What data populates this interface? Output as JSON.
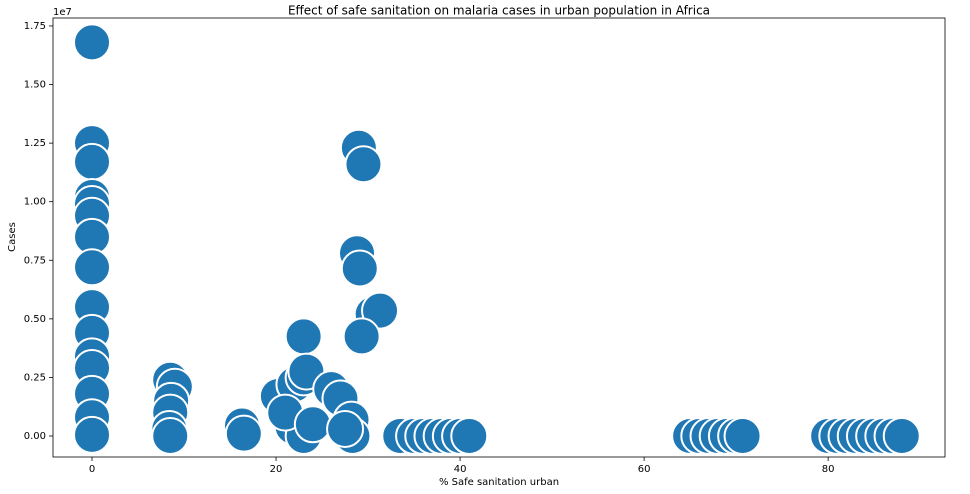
{
  "chart_data": {
    "type": "scatter",
    "title": "Effect of safe sanitation on malaria cases in urban population in Africa",
    "x_label": "% Safe sanitation urban",
    "y_label": "Cases",
    "y_offset_label": "1e7",
    "color": "#1f77b4",
    "edge_color": "#ffffff",
    "x": [
      0,
      0,
      0,
      0,
      0,
      0,
      0,
      0,
      0,
      0,
      0,
      0,
      0,
      0,
      0,
      8.5,
      9,
      8.6,
      8.5,
      8.4,
      8.5,
      16.3,
      16.5,
      20.2,
      22,
      23,
      23,
      23.3,
      21.8,
      23,
      21,
      24,
      26,
      27,
      28.2,
      28.3,
      27.5,
      29,
      29.5,
      28.8,
      29.1,
      30.5,
      31.3,
      29.3,
      33.5,
      35,
      36,
      37,
      38,
      39,
      40,
      41,
      65,
      66,
      67,
      68,
      69,
      70,
      70.7,
      80,
      81,
      82,
      83,
      84,
      85,
      86,
      87,
      88
    ],
    "values": [
      16800000,
      12500000,
      11700000,
      10200000,
      9900000,
      9400000,
      8500000,
      7200000,
      5500000,
      4400000,
      3400000,
      2900000,
      1800000,
      800000,
      50000,
      2400000,
      2100000,
      1500000,
      1000000,
      300000,
      0,
      450000,
      100000,
      1700000,
      2200000,
      2500000,
      4250000,
      2750000,
      400000,
      0,
      1000000,
      500000,
      2000000,
      1600000,
      700000,
      0,
      300000,
      12300000,
      11600000,
      7800000,
      7150000,
      5200000,
      5350000,
      4250000,
      0,
      0,
      0,
      0,
      0,
      0,
      0,
      0,
      0,
      0,
      0,
      0,
      0,
      0,
      0,
      0,
      0,
      0,
      0,
      0,
      0,
      0,
      0,
      0
    ],
    "xlim": [
      -4.24,
      92.7
    ],
    "ylim": [
      -896000,
      17840000
    ],
    "xticks": [
      0,
      20,
      40,
      60,
      80
    ],
    "yticks": [
      {
        "value": 0,
        "label": "0.00"
      },
      {
        "value": 2500000,
        "label": "0.25"
      },
      {
        "value": 5000000,
        "label": "0.50"
      },
      {
        "value": 7500000,
        "label": "0.75"
      },
      {
        "value": 10000000,
        "label": "1.00"
      },
      {
        "value": 12500000,
        "label": "1.25"
      },
      {
        "value": 15000000,
        "label": "1.50"
      },
      {
        "value": 17500000,
        "label": "1.75"
      }
    ]
  }
}
